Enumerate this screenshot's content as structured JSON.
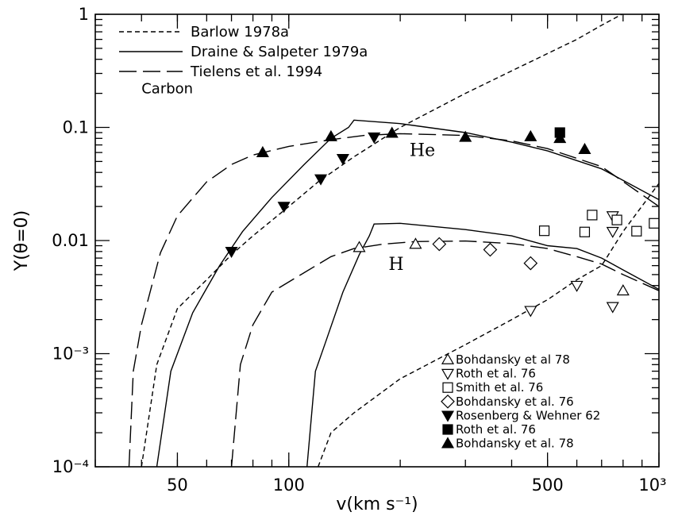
{
  "chart_data": {
    "type": "line",
    "x_scale": "log",
    "y_scale": "log",
    "xlim": [
      30,
      1000
    ],
    "ylim": [
      0.0001,
      1
    ],
    "xlabel": "v(km s⁻¹)",
    "ylabel": "Y(θ=0)",
    "x_ticks": [
      {
        "value": 50,
        "label": "50"
      },
      {
        "value": 100,
        "label": "100"
      },
      {
        "value": 500,
        "label": "500"
      },
      {
        "value": 1000,
        "label": "10³"
      }
    ],
    "y_ticks": [
      {
        "value": 0.0001,
        "label": "10⁻⁴"
      },
      {
        "value": 0.001,
        "label": "10⁻³"
      },
      {
        "value": 0.01,
        "label": "0.01"
      },
      {
        "value": 0.1,
        "label": "0.1"
      },
      {
        "value": 1,
        "label": "1"
      }
    ],
    "annotations": [
      {
        "text": "Carbon",
        "x": 40,
        "y": 0.2,
        "style": "small"
      },
      {
        "text": "He",
        "x": 212,
        "y": 0.056,
        "style": "big"
      },
      {
        "text": "H",
        "x": 186,
        "y": 0.0055,
        "style": "big"
      }
    ],
    "line_legend": [
      {
        "label": "Barlow 1978a",
        "dash": "dotted-short"
      },
      {
        "label": "Draine & Salpeter 1979a",
        "dash": "solid"
      },
      {
        "label": "Tielens et al. 1994",
        "dash": "long-dash"
      }
    ],
    "series": [
      {
        "name": "Barlow 1978a",
        "group": "He",
        "dash": "dotted-short",
        "points": [
          [
            40,
            0.0001
          ],
          [
            44,
            0.0008
          ],
          [
            50,
            0.0025
          ],
          [
            60,
            0.0045
          ],
          [
            70,
            0.0075
          ],
          [
            80,
            0.011
          ],
          [
            100,
            0.02
          ],
          [
            120,
            0.033
          ],
          [
            150,
            0.055
          ],
          [
            200,
            0.1
          ],
          [
            300,
            0.2
          ],
          [
            500,
            0.45
          ],
          [
            600,
            0.6
          ],
          [
            700,
            0.8
          ],
          [
            1000,
            1.5
          ]
        ]
      },
      {
        "name": "Draine & Salpeter 1979a",
        "group": "He",
        "dash": "solid",
        "points": [
          [
            44,
            0.0001
          ],
          [
            48,
            0.0007
          ],
          [
            55,
            0.0023
          ],
          [
            65,
            0.006
          ],
          [
            75,
            0.012
          ],
          [
            90,
            0.024
          ],
          [
            110,
            0.047
          ],
          [
            130,
            0.08
          ],
          [
            145,
            0.1
          ],
          [
            150,
            0.116
          ],
          [
            200,
            0.108
          ],
          [
            300,
            0.09
          ],
          [
            400,
            0.074
          ],
          [
            500,
            0.062
          ],
          [
            700,
            0.043
          ],
          [
            1000,
            0.023
          ]
        ]
      },
      {
        "name": "Tielens et al. 1994",
        "group": "He",
        "dash": "long-dash",
        "points": [
          [
            37,
            0.0001
          ],
          [
            38,
            0.0007
          ],
          [
            40,
            0.0018
          ],
          [
            45,
            0.0078
          ],
          [
            50,
            0.0165
          ],
          [
            60,
            0.033
          ],
          [
            70,
            0.047
          ],
          [
            80,
            0.057
          ],
          [
            100,
            0.068
          ],
          [
            130,
            0.078
          ],
          [
            160,
            0.085
          ],
          [
            200,
            0.088
          ],
          [
            300,
            0.085
          ],
          [
            400,
            0.076
          ],
          [
            500,
            0.065
          ],
          [
            700,
            0.045
          ],
          [
            1000,
            0.02
          ]
        ]
      },
      {
        "name": "Barlow 1978a",
        "group": "H",
        "dash": "dotted-short",
        "points": [
          [
            120,
            0.0001
          ],
          [
            130,
            0.0002
          ],
          [
            150,
            0.0003
          ],
          [
            200,
            0.0006
          ],
          [
            300,
            0.0012
          ],
          [
            400,
            0.002
          ],
          [
            500,
            0.003
          ],
          [
            600,
            0.0045
          ],
          [
            700,
            0.006
          ],
          [
            800,
            0.012
          ],
          [
            1000,
            0.032
          ]
        ]
      },
      {
        "name": "Draine & Salpeter 1979a",
        "group": "H",
        "dash": "solid",
        "points": [
          [
            112,
            0.0001
          ],
          [
            118,
            0.0007
          ],
          [
            125,
            0.0012
          ],
          [
            140,
            0.0035
          ],
          [
            155,
            0.0075
          ],
          [
            165,
            0.011
          ],
          [
            170,
            0.014
          ],
          [
            200,
            0.0142
          ],
          [
            300,
            0.0125
          ],
          [
            400,
            0.011
          ],
          [
            500,
            0.009
          ],
          [
            600,
            0.0085
          ],
          [
            700,
            0.007
          ],
          [
            800,
            0.0055
          ],
          [
            1000,
            0.0037
          ]
        ]
      },
      {
        "name": "Tielens et al. 1994",
        "group": "H",
        "dash": "long-dash",
        "points": [
          [
            70,
            0.0001
          ],
          [
            74,
            0.0008
          ],
          [
            80,
            0.0018
          ],
          [
            90,
            0.0035
          ],
          [
            110,
            0.0052
          ],
          [
            130,
            0.0072
          ],
          [
            150,
            0.0085
          ],
          [
            180,
            0.0093
          ],
          [
            220,
            0.0098
          ],
          [
            300,
            0.0099
          ],
          [
            400,
            0.0094
          ],
          [
            500,
            0.0085
          ],
          [
            600,
            0.0072
          ],
          [
            700,
            0.0062
          ],
          [
            800,
            0.005
          ],
          [
            1000,
            0.0036
          ]
        ]
      }
    ],
    "marker_legend": [
      {
        "label": "Bohdansky et al 78",
        "marker": "triangle-up-open"
      },
      {
        "label": "Roth et al. 76",
        "marker": "triangle-down-open"
      },
      {
        "label": "Smith et al. 76",
        "marker": "square-open"
      },
      {
        "label": "Bohdansky et al. 76",
        "marker": "diamond-open"
      },
      {
        "label": "Rosenberg & Wehner 62",
        "marker": "triangle-down-filled"
      },
      {
        "label": "Roth et al. 76",
        "marker": "square-filled"
      },
      {
        "label": "Bohdansky et al. 78",
        "marker": "triangle-up-filled"
      }
    ],
    "scatter": [
      {
        "marker": "triangle-up-open",
        "points": [
          [
            155,
            0.0087
          ],
          [
            220,
            0.0093
          ],
          [
            800,
            0.0036
          ]
        ]
      },
      {
        "marker": "triangle-down-open",
        "points": [
          [
            450,
            0.0024
          ],
          [
            600,
            0.004
          ],
          [
            750,
            0.0026
          ],
          [
            750,
            0.0165
          ],
          [
            750,
            0.012
          ]
        ]
      },
      {
        "marker": "square-open",
        "points": [
          [
            490,
            0.0122
          ],
          [
            630,
            0.0119
          ],
          [
            660,
            0.0168
          ],
          [
            770,
            0.0152
          ],
          [
            870,
            0.0121
          ],
          [
            970,
            0.0142
          ]
        ]
      },
      {
        "marker": "diamond-open",
        "points": [
          [
            255,
            0.0093
          ],
          [
            350,
            0.0083
          ],
          [
            450,
            0.0063
          ]
        ]
      },
      {
        "marker": "triangle-down-filled",
        "points": [
          [
            70,
            0.008
          ],
          [
            97,
            0.02
          ],
          [
            122,
            0.035
          ],
          [
            140,
            0.053
          ],
          [
            170,
            0.082
          ]
        ]
      },
      {
        "marker": "square-filled",
        "points": [
          [
            540,
            0.09
          ]
        ]
      },
      {
        "marker": "triangle-up-filled",
        "points": [
          [
            85,
            0.06
          ],
          [
            130,
            0.083
          ],
          [
            190,
            0.089
          ],
          [
            300,
            0.082
          ],
          [
            450,
            0.083
          ],
          [
            540,
            0.08
          ],
          [
            630,
            0.064
          ]
        ]
      }
    ]
  }
}
